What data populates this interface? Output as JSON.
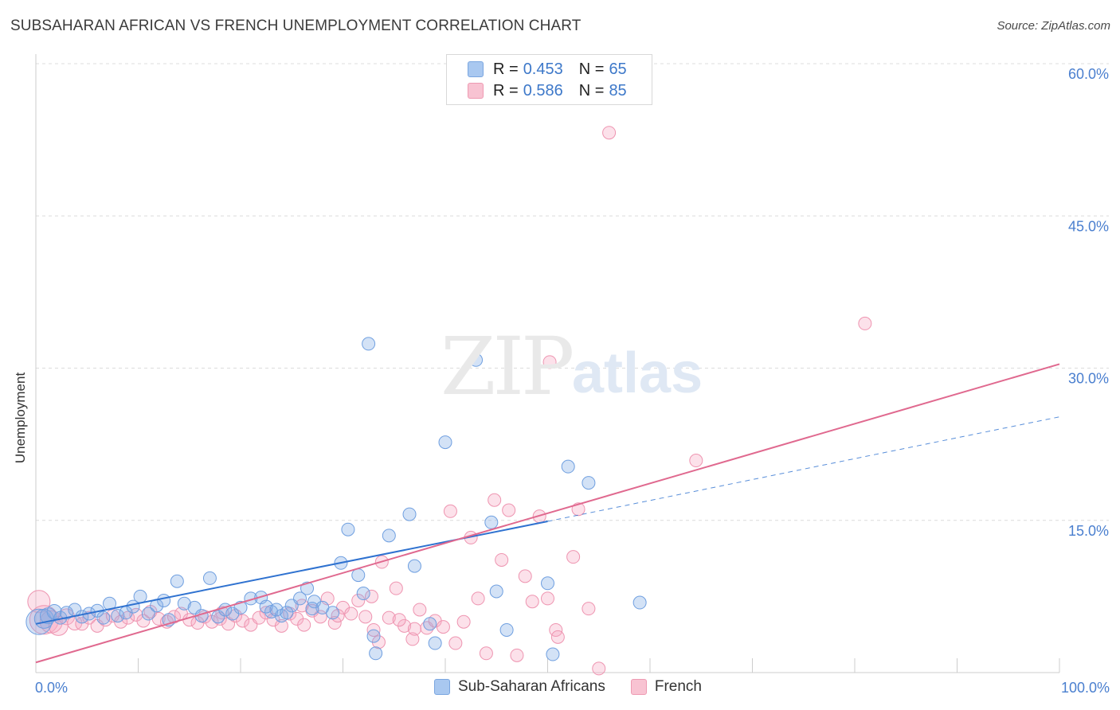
{
  "header": {
    "title": "SUBSAHARAN AFRICAN VS FRENCH UNEMPLOYMENT CORRELATION CHART",
    "source": "Source: ZipAtlas.com"
  },
  "watermark": {
    "zip": "ZIP",
    "atlas": "atlas"
  },
  "legend": {
    "rows": [
      {
        "r_label": "R =",
        "r_value": "0.453",
        "n_label": "N =",
        "n_value": "65",
        "color": "#a9c8f0",
        "border": "#7aa6e0"
      },
      {
        "r_label": "R =",
        "r_value": "0.586",
        "n_label": "N =",
        "n_value": "85",
        "color": "#f8c3d2",
        "border": "#ee9ab2"
      }
    ]
  },
  "bottom_legend": {
    "items": [
      {
        "label": "Sub-Saharan Africans",
        "color": "#a9c8f0",
        "border": "#7aa6e0"
      },
      {
        "label": "French",
        "color": "#f8c3d2",
        "border": "#ee9ab2"
      }
    ]
  },
  "colors": {
    "blue_fill": "rgba(130,172,230,0.35)",
    "blue_stroke": "#6f9fe0",
    "blue_line": "#2f72d0",
    "pink_fill": "rgba(245,170,195,0.35)",
    "pink_stroke": "#ee94b0",
    "pink_line": "#e0698f",
    "tick_label": "#4a7fcf",
    "grid": "#dcdcdc"
  },
  "chart_data": {
    "type": "scatter",
    "title": "SUBSAHARAN AFRICAN VS FRENCH UNEMPLOYMENT CORRELATION CHART",
    "xlabel": "",
    "ylabel": "Unemployment",
    "xlim": [
      0,
      100
    ],
    "ylim": [
      0,
      60
    ],
    "x_ticks": [
      "0.0%",
      "100.0%"
    ],
    "y_ticks": [
      {
        "value": 15,
        "label": "15.0%"
      },
      {
        "value": 30,
        "label": "30.0%"
      },
      {
        "value": 45,
        "label": "45.0%"
      },
      {
        "value": 60,
        "label": "60.0%"
      }
    ],
    "grid": true,
    "legend_position": "top-center",
    "series": [
      {
        "name": "Sub-Saharan Africans",
        "r": 0.453,
        "n": 65,
        "trend": {
          "x0": 0,
          "y0": 4.8,
          "x1": 50,
          "y1": 14.9,
          "dashed_to_x": 100,
          "dashed_to_y": 25.2
        },
        "points": [
          [
            0.3,
            5.0,
            16
          ],
          [
            0.8,
            5.3,
            12
          ],
          [
            1.2,
            5.6,
            10
          ],
          [
            1.8,
            6.0,
            9
          ],
          [
            2.4,
            5.4,
            8
          ],
          [
            3.0,
            5.9,
            8
          ],
          [
            3.8,
            6.2,
            8
          ],
          [
            4.5,
            5.5,
            8
          ],
          [
            5.2,
            5.8,
            8
          ],
          [
            6.0,
            6.1,
            8
          ],
          [
            6.6,
            5.4,
            8
          ],
          [
            7.2,
            6.8,
            8
          ],
          [
            8.0,
            5.6,
            8
          ],
          [
            8.8,
            5.9,
            8
          ],
          [
            9.5,
            6.5,
            8
          ],
          [
            10.2,
            7.5,
            8
          ],
          [
            11.0,
            5.8,
            8
          ],
          [
            11.8,
            6.6,
            8
          ],
          [
            12.5,
            7.1,
            8
          ],
          [
            13.0,
            5.2,
            8
          ],
          [
            13.8,
            9.0,
            8
          ],
          [
            14.5,
            6.8,
            8
          ],
          [
            15.5,
            6.4,
            8
          ],
          [
            16.2,
            5.6,
            8
          ],
          [
            17.0,
            9.3,
            8
          ],
          [
            17.8,
            5.5,
            8
          ],
          [
            18.5,
            6.2,
            8
          ],
          [
            19.2,
            5.8,
            8
          ],
          [
            20.0,
            6.4,
            8
          ],
          [
            21.0,
            7.3,
            8
          ],
          [
            22.0,
            7.4,
            8
          ],
          [
            23.0,
            6.0,
            8
          ],
          [
            24.0,
            5.6,
            8
          ],
          [
            25.0,
            6.6,
            8
          ],
          [
            25.8,
            7.3,
            8
          ],
          [
            26.5,
            8.3,
            8
          ],
          [
            27.2,
            7.0,
            8
          ],
          [
            28.0,
            6.4,
            8
          ],
          [
            29.0,
            5.9,
            8
          ],
          [
            29.8,
            10.8,
            8
          ],
          [
            30.5,
            14.1,
            8
          ],
          [
            31.5,
            9.6,
            8
          ],
          [
            22.5,
            6.5,
            8
          ],
          [
            23.5,
            6.2,
            8
          ],
          [
            24.5,
            5.9,
            8
          ],
          [
            32.0,
            7.8,
            8
          ],
          [
            33.0,
            3.6,
            8
          ],
          [
            34.5,
            13.5,
            8
          ],
          [
            36.5,
            15.6,
            8
          ],
          [
            37.0,
            10.5,
            8
          ],
          [
            33.2,
            1.9,
            8
          ],
          [
            38.5,
            4.8,
            8
          ],
          [
            39.0,
            2.9,
            8
          ],
          [
            40.0,
            22.7,
            8
          ],
          [
            44.5,
            14.8,
            8
          ],
          [
            45.0,
            8.0,
            8
          ],
          [
            46.0,
            4.2,
            8
          ],
          [
            32.5,
            32.4,
            8
          ],
          [
            43.0,
            30.8,
            8
          ],
          [
            52.0,
            20.3,
            8
          ],
          [
            54.0,
            18.7,
            8
          ],
          [
            50.0,
            8.8,
            8
          ],
          [
            50.5,
            1.8,
            8
          ],
          [
            59.0,
            6.9,
            8
          ],
          [
            27.0,
            6.3,
            8
          ]
        ]
      },
      {
        "name": "French",
        "r": 0.586,
        "n": 85,
        "trend": {
          "x0": 0,
          "y0": 1.0,
          "x1": 100,
          "y1": 30.4
        },
        "points": [
          [
            0.3,
            7.0,
            14
          ],
          [
            0.8,
            5.2,
            18
          ],
          [
            1.5,
            5.0,
            14
          ],
          [
            2.2,
            4.6,
            12
          ],
          [
            3.0,
            5.5,
            10
          ],
          [
            3.8,
            4.9,
            9
          ],
          [
            4.5,
            4.8,
            8
          ],
          [
            5.2,
            5.4,
            8
          ],
          [
            6.0,
            4.6,
            8
          ],
          [
            6.8,
            5.2,
            8
          ],
          [
            7.5,
            5.6,
            8
          ],
          [
            8.3,
            5.0,
            8
          ],
          [
            9.0,
            5.4,
            8
          ],
          [
            9.8,
            5.7,
            8
          ],
          [
            10.5,
            5.1,
            8
          ],
          [
            11.2,
            6.0,
            8
          ],
          [
            12.0,
            5.3,
            8
          ],
          [
            12.8,
            5.0,
            8
          ],
          [
            13.5,
            5.5,
            8
          ],
          [
            14.2,
            5.8,
            8
          ],
          [
            15.0,
            5.2,
            8
          ],
          [
            15.8,
            4.9,
            8
          ],
          [
            16.5,
            5.5,
            8
          ],
          [
            17.2,
            5.0,
            8
          ],
          [
            18.0,
            5.3,
            8
          ],
          [
            18.8,
            4.8,
            8
          ],
          [
            19.5,
            5.6,
            8
          ],
          [
            20.2,
            5.1,
            8
          ],
          [
            21.0,
            4.7,
            8
          ],
          [
            21.8,
            5.4,
            8
          ],
          [
            22.5,
            5.9,
            8
          ],
          [
            23.2,
            5.2,
            8
          ],
          [
            24.0,
            4.6,
            8
          ],
          [
            24.8,
            5.8,
            8
          ],
          [
            25.5,
            5.3,
            8
          ],
          [
            26.2,
            4.7,
            8
          ],
          [
            27.0,
            6.1,
            8
          ],
          [
            27.8,
            5.5,
            8
          ],
          [
            28.5,
            7.3,
            8
          ],
          [
            29.2,
            4.9,
            8
          ],
          [
            30.0,
            6.4,
            8
          ],
          [
            30.8,
            5.8,
            8
          ],
          [
            31.5,
            7.1,
            8
          ],
          [
            32.2,
            5.5,
            8
          ],
          [
            33.0,
            4.2,
            8
          ],
          [
            33.8,
            10.9,
            8
          ],
          [
            34.5,
            5.4,
            8
          ],
          [
            35.2,
            8.3,
            8
          ],
          [
            36.0,
            4.6,
            8
          ],
          [
            36.8,
            3.3,
            8
          ],
          [
            37.5,
            6.2,
            8
          ],
          [
            38.2,
            4.4,
            8
          ],
          [
            39.0,
            5.1,
            8
          ],
          [
            39.8,
            4.5,
            8
          ],
          [
            40.5,
            15.9,
            8
          ],
          [
            41.0,
            2.9,
            8
          ],
          [
            41.8,
            5.0,
            8
          ],
          [
            42.5,
            13.3,
            8
          ],
          [
            43.2,
            7.3,
            8
          ],
          [
            44.0,
            1.9,
            8
          ],
          [
            44.8,
            17.0,
            8
          ],
          [
            45.5,
            11.1,
            8
          ],
          [
            46.2,
            16.0,
            8
          ],
          [
            47.0,
            1.7,
            8
          ],
          [
            47.8,
            9.5,
            8
          ],
          [
            48.5,
            7.0,
            8
          ],
          [
            49.2,
            15.4,
            8
          ],
          [
            50.0,
            7.3,
            8
          ],
          [
            50.8,
            4.2,
            8
          ],
          [
            51.0,
            3.5,
            8
          ],
          [
            52.5,
            11.4,
            8
          ],
          [
            53.0,
            16.1,
            8
          ],
          [
            54.0,
            6.3,
            8
          ],
          [
            55.0,
            0.4,
            8
          ],
          [
            33.5,
            3.0,
            8
          ],
          [
            32.8,
            7.5,
            8
          ],
          [
            50.2,
            30.6,
            8
          ],
          [
            64.5,
            20.9,
            8
          ],
          [
            56.0,
            53.2,
            8
          ],
          [
            81.0,
            34.4,
            8
          ],
          [
            35.5,
            5.2,
            8
          ],
          [
            37.0,
            4.3,
            8
          ],
          [
            29.5,
            5.6,
            8
          ],
          [
            26.0,
            6.6,
            8
          ],
          [
            18.2,
            5.9,
            8
          ]
        ]
      }
    ]
  }
}
